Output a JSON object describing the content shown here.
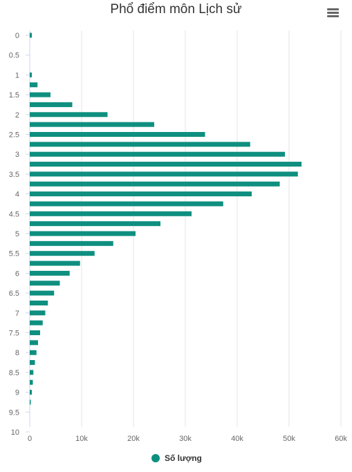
{
  "chart_data": {
    "type": "bar",
    "orientation": "horizontal",
    "title": "Phổ điểm môn Lịch sử",
    "categories": [
      "0",
      "0.25",
      "0.5",
      "0.75",
      "1",
      "1.25",
      "1.5",
      "1.75",
      "2",
      "2.25",
      "2.5",
      "2.75",
      "3",
      "3.25",
      "3.5",
      "3.75",
      "4",
      "4.25",
      "4.5",
      "4.75",
      "5",
      "5.25",
      "5.5",
      "5.75",
      "6",
      "6.25",
      "6.5",
      "6.75",
      "7",
      "7.25",
      "7.5",
      "7.75",
      "8",
      "8.25",
      "8.5",
      "8.75",
      "9",
      "9.25",
      "9.5",
      "9.75",
      "10"
    ],
    "tick_labels": [
      "0",
      "0.5",
      "1",
      "1.5",
      "2",
      "2.5",
      "3",
      "3.5",
      "4",
      "4.5",
      "5",
      "5.5",
      "6",
      "6.5",
      "7",
      "7.5",
      "8",
      "8.5",
      "9",
      "9.5",
      "10"
    ],
    "series": [
      {
        "name": "Số lượng",
        "color": "#0f8f80",
        "values": [
          400,
          0,
          0,
          0,
          400,
          1500,
          4000,
          8200,
          15000,
          24000,
          33800,
          42500,
          49200,
          52400,
          51700,
          48200,
          42800,
          37300,
          31200,
          25200,
          20400,
          16100,
          12500,
          9700,
          7700,
          5800,
          4700,
          3500,
          3000,
          2500,
          2000,
          1600,
          1300,
          1000,
          700,
          600,
          400,
          200,
          0,
          0,
          0
        ]
      }
    ],
    "x_ticks": [
      "0",
      "10k",
      "20k",
      "30k",
      "40k",
      "50k",
      "60k"
    ],
    "xlim": [
      0,
      60000
    ],
    "grid": true,
    "legend": "bottom-center"
  },
  "ui": {
    "menu_icon": "hamburger-menu-icon"
  }
}
